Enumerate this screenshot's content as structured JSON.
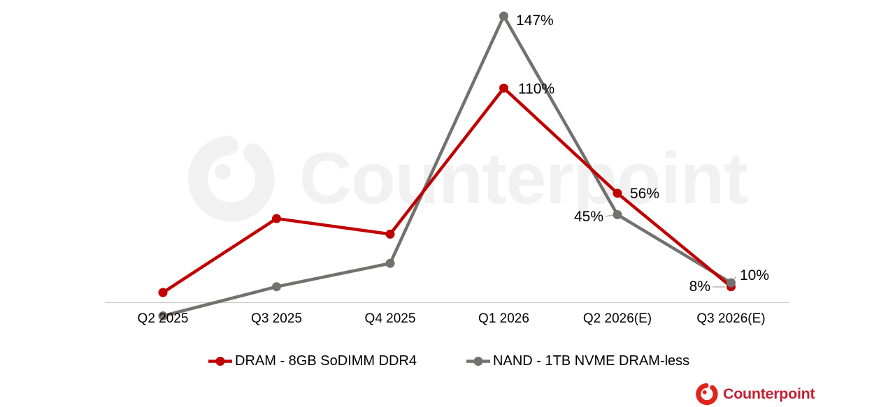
{
  "watermark": {
    "text": "Counterpoint"
  },
  "logo": {
    "text": "Counterpoint"
  },
  "colors": {
    "dram_red": "#c00000",
    "nand_gray": "#757070",
    "axis_line": "#c8c8c8",
    "label_text": "#000000",
    "leader_line": "#a6a6a6",
    "watermark_gray": "#f1f1f1",
    "logo_mark_red": "#e2231a",
    "logo_text_red": "#c32032"
  },
  "chart_data": {
    "type": "line",
    "title": "",
    "xlabel": "",
    "ylabel": "",
    "grid": false,
    "legend_position": "bottom",
    "baseline": 0,
    "ylim": [
      -20,
      160
    ],
    "unit": "%",
    "categories": [
      "Q2 2025",
      "Q3 2025",
      "Q4 2025",
      "Q1 2026",
      "Q2 2026(E)",
      "Q3 2026(E)"
    ],
    "series": [
      {
        "key": "dram",
        "name": "DRAM - 8GB SoDIMM DDR4",
        "color": "#c00000",
        "values": [
          5,
          43,
          35,
          110,
          56,
          8
        ]
      },
      {
        "key": "nand",
        "name": "NAND - 1TB NVME DRAM-less",
        "color": "#757070",
        "values": [
          -7,
          8,
          20,
          147,
          45,
          10
        ]
      }
    ],
    "point_labels": [
      {
        "series": "nand",
        "index": 3,
        "text": "147%"
      },
      {
        "series": "dram",
        "index": 3,
        "text": "110%"
      },
      {
        "series": "dram",
        "index": 4,
        "text": "56%"
      },
      {
        "series": "nand",
        "index": 4,
        "text": "45%"
      },
      {
        "series": "dram",
        "index": 5,
        "text": "8%"
      },
      {
        "series": "nand",
        "index": 5,
        "text": "10%"
      }
    ]
  }
}
